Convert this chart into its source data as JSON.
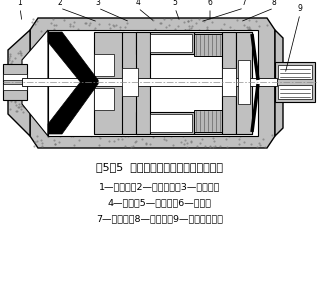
{
  "title_line1": "图5－5  磁电式振动速度传感器结构示意",
  "caption_line2": "1—弹簧片；2—永久磁钢；3—阻尼环；",
  "caption_line3": "4—支架；5—连接杆；6—外壳：",
  "caption_line4": "7—动线圈；8—弹簧片；9—引出线接头。",
  "bg_color": "#ffffff",
  "gray_light": "#b8b8b8",
  "gray_medium": "#909090",
  "gray_dark": "#505050",
  "gray_fill": "#c0c0c0",
  "black": "#000000",
  "dot_gray": "#b0b0b0"
}
